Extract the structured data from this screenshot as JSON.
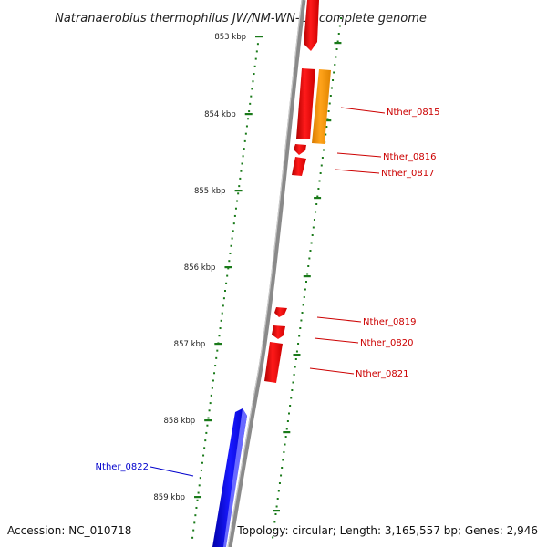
{
  "title": "Natranaerobius thermophilus JW/NM-WN-LF, complete genome",
  "footer": {
    "accession": "Accession: NC_010718",
    "topology": "Topology: circular; Length: 3,165,557 bp; Genes: 2,946"
  },
  "colors": {
    "backbone": "#8a8a8a",
    "tick": "#1a7a1a",
    "gene_red": "#ff0000",
    "gene_orange": "#ff9900",
    "gene_blue": "#0000ee",
    "label_red": "#cc0000",
    "label_blue": "#0000cc"
  },
  "scale_ticks": [
    {
      "label": "853 kbp"
    },
    {
      "label": "854 kbp"
    },
    {
      "label": "855 kbp"
    },
    {
      "label": "856 kbp"
    },
    {
      "label": "857 kbp"
    },
    {
      "label": "858 kbp"
    },
    {
      "label": "859 kbp"
    }
  ],
  "gene_labels": [
    {
      "text": "Nther_0815",
      "color": "red"
    },
    {
      "text": "Nther_0816",
      "color": "red"
    },
    {
      "text": "Nther_0817",
      "color": "red"
    },
    {
      "text": "Nther_0819",
      "color": "red"
    },
    {
      "text": "Nther_0820",
      "color": "red"
    },
    {
      "text": "Nther_0821",
      "color": "red"
    },
    {
      "text": "Nther_0822",
      "color": "blue"
    }
  ]
}
